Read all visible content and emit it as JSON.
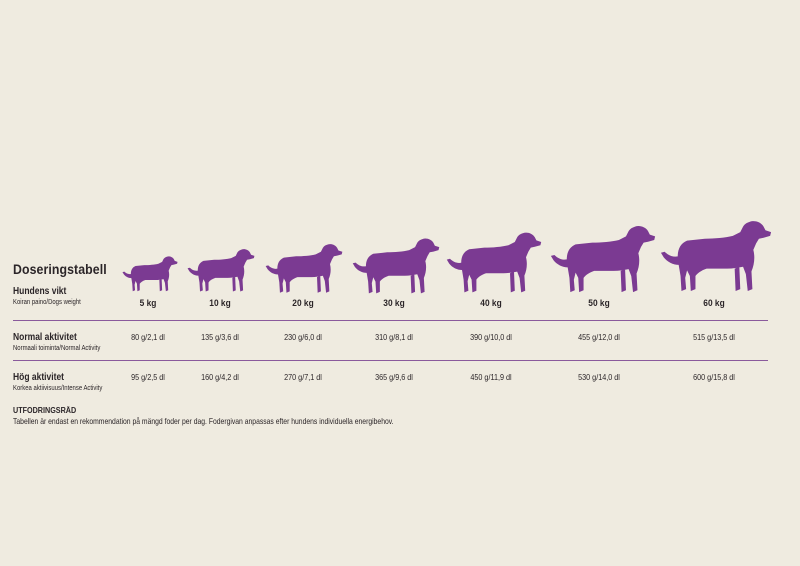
{
  "title": "Doseringstabell",
  "weight_row": {
    "label": "Hundens vikt",
    "sublabel": "Koiran paino/Dogs weight",
    "values": [
      "5 kg",
      "10 kg",
      "20 kg",
      "30 kg",
      "40 kg",
      "50 kg",
      "60 kg"
    ]
  },
  "normal_row": {
    "label": "Normal aktivitet",
    "sublabel": "Normaali toiminta/Normal Activity",
    "values": [
      "80 g/2,1 dl",
      "135 g/3,6 dl",
      "230 g/6,0 dl",
      "310 g/8,1 dl",
      "390 g/10,0 dl",
      "455 g/12,0 dl",
      "515 g/13,5 dl"
    ]
  },
  "high_row": {
    "label": "Hög aktivitet",
    "sublabel": "Korkea aktiivisuus/Intense Activity",
    "values": [
      "95 g/2,5 dl",
      "160 g/4,2 dl",
      "270 g/7,1 dl",
      "365 g/9,6 dl",
      "450 g/11,9 dl",
      "530 g/14,0 dl",
      "600 g/15,8 dl"
    ]
  },
  "advice": {
    "title": "UTFODRINGSRÅD",
    "text": "Tabellen är endast en rekommendation på mängd foder per dag. Fodergivan anpassas efter hundens individuella energibehov."
  },
  "colors": {
    "dog": "#7b3a92",
    "rule": "#8a5a9c",
    "background": "#efebe0"
  },
  "icons": [
    "dog-silhouette-icon"
  ]
}
